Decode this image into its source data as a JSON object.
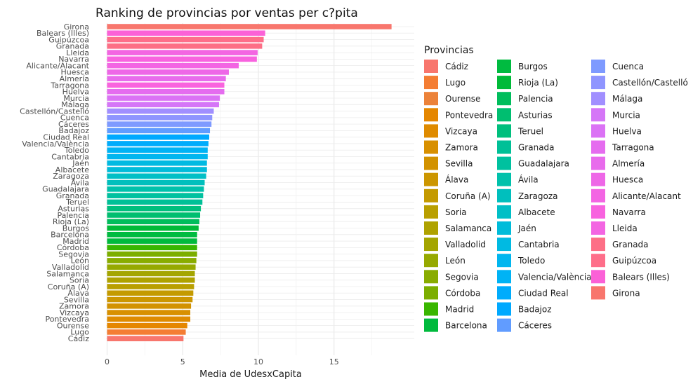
{
  "chart_data": {
    "type": "bar",
    "orientation": "horizontal",
    "title": "Ranking de provincias por ventas per c?pita",
    "xlabel": "Media de UdesxCapita",
    "ylabel": "",
    "xlim": [
      0,
      19.5
    ],
    "xticks": [
      0,
      5,
      10,
      15
    ],
    "grid": true,
    "legend_title": "Provincias",
    "legend_position": "right",
    "categories": [
      "Girona",
      "Balears (Illes)",
      "Guipúzcoa",
      "Granada",
      "Lleida",
      "Navarra",
      "Alicante/Alacant",
      "Huesca",
      "Almería",
      "Tarragona",
      "Huelva",
      "Murcia",
      "Málaga",
      "Castellón/Castelló",
      "Cuenca",
      "Cáceres",
      "Badajoz",
      "Ciudad Real",
      "Valencia/València",
      "Toledo",
      "Cantabria",
      "Jaén",
      "Albacete",
      "Zaragoza",
      "Ávila",
      "Guadalajara",
      "Granada",
      "Teruel",
      "Asturias",
      "Palencia",
      "Rioja (La)",
      "Burgos",
      "Barcelona",
      "Madrid",
      "Córdoba",
      "Segovia",
      "León",
      "Valladolid",
      "Salamanca",
      "Soria",
      "Coruña (A)",
      "Álava",
      "Sevilla",
      "Zamora",
      "Vizcaya",
      "Pontevedra",
      "Ourense",
      "Lugo",
      "Cádiz"
    ],
    "values": [
      18.8,
      10.45,
      10.35,
      10.25,
      9.95,
      9.9,
      8.7,
      8.05,
      7.85,
      7.75,
      7.75,
      7.45,
      7.4,
      7.05,
      6.95,
      6.9,
      6.8,
      6.75,
      6.7,
      6.65,
      6.65,
      6.6,
      6.6,
      6.55,
      6.45,
      6.4,
      6.35,
      6.3,
      6.2,
      6.15,
      6.1,
      6.05,
      5.95,
      5.95,
      5.95,
      5.95,
      5.9,
      5.85,
      5.8,
      5.8,
      5.75,
      5.7,
      5.65,
      5.55,
      5.5,
      5.5,
      5.3,
      5.2,
      5.05
    ],
    "colors": [
      "#F8766D",
      "#FB61D7",
      "#FE6E8A",
      "#FD6F86",
      "#F365E2",
      "#F863DF",
      "#F365E3",
      "#EE67E7",
      "#E86BEC",
      "#F963DE",
      "#E56CEF",
      "#DB72F5",
      "#D576F7",
      "#A18FFF",
      "#8F95FF",
      "#7E9AFF",
      "#619CFF",
      "#00A9FF",
      "#00ACFC",
      "#00B3F5",
      "#00B6EF",
      "#00BAE2",
      "#00BCDA",
      "#00BFC6",
      "#00BFBD",
      "#00C1AB",
      "#00C19F",
      "#00C097",
      "#00BF7D",
      "#00BE70",
      "#00BD5C",
      "#00BA38",
      "#00BB40",
      "#00BA3D",
      "#39B600",
      "#7CAE00",
      "#89AC00",
      "#96A900",
      "#A4A500",
      "#AFA200",
      "#B99F00",
      "#C49A00",
      "#CC9600",
      "#D29200",
      "#D89000",
      "#DF8B00",
      "#E58700",
      "#F47D33",
      "#F8766D"
    ],
    "legend_entries": [
      "Cádiz",
      "Lugo",
      "Ourense",
      "Pontevedra",
      "Vizcaya",
      "Zamora",
      "Sevilla",
      "Álava",
      "Coruña (A)",
      "Soria",
      "Salamanca",
      "Valladolid",
      "León",
      "Segovia",
      "Córdoba",
      "Madrid",
      "Barcelona",
      "Burgos",
      "Rioja (La)",
      "Palencia",
      "Asturias",
      "Teruel",
      "Granada",
      "Guadalajara",
      "Ávila",
      "Zaragoza",
      "Albacete",
      "Jaén",
      "Cantabria",
      "Toledo",
      "Valencia/València",
      "Ciudad Real",
      "Badajoz",
      "Cáceres",
      "Cuenca",
      "Castellón/Castelló",
      "Málaga",
      "Murcia",
      "Huelva",
      "Tarragona",
      "Almería",
      "Huesca",
      "Alicante/Alacant",
      "Navarra",
      "Lleida",
      "Granada",
      "Guipúzcoa",
      "Balears (Illes)",
      "Girona"
    ],
    "legend_colors": [
      "#F8766D",
      "#F47D33",
      "#EC8239",
      "#E58700",
      "#DF8B00",
      "#D89000",
      "#D29200",
      "#CC9600",
      "#C49A00",
      "#B99F00",
      "#AFA200",
      "#A4A500",
      "#96A900",
      "#89AC00",
      "#7CAE00",
      "#39B600",
      "#00BA3D",
      "#00BB40",
      "#00BA38",
      "#00BD5C",
      "#00BE70",
      "#00BF7D",
      "#00C097",
      "#00C19F",
      "#00C1AB",
      "#00BFBD",
      "#00BFC6",
      "#00BCDA",
      "#00BAE2",
      "#00B6EF",
      "#00B3F5",
      "#00ACFC",
      "#00A9FF",
      "#619CFF",
      "#7E9AFF",
      "#8F95FF",
      "#A18FFF",
      "#D576F7",
      "#DB72F5",
      "#E56CEF",
      "#E86BEC",
      "#EE67E7",
      "#F365E3",
      "#F863DF",
      "#F365E2",
      "#FD6F86",
      "#FE6E8A",
      "#FB61D7",
      "#F8766D"
    ]
  }
}
